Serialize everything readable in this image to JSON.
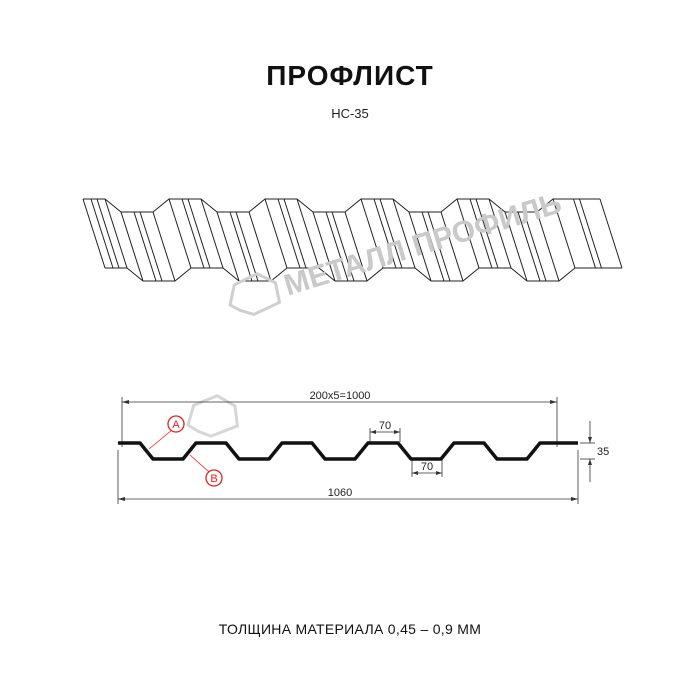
{
  "title": "ПРОФЛИСТ",
  "model": "НС-35",
  "watermark": "МЕТАЛЛ ПРОФИЛЬ",
  "dimensions": {
    "pitch_total": "200x5=1000",
    "top_flat": "70",
    "bottom_flat": "70",
    "height": "35",
    "total_width": "1060"
  },
  "markers": {
    "a": "A",
    "b": "B"
  },
  "colors": {
    "profile": "#111111",
    "marker": "#e02020",
    "watermark": "#c9c9c9"
  },
  "footer": "ТОЛЩИНА МАТЕРИАЛА 0,45 – 0,9 ММ"
}
